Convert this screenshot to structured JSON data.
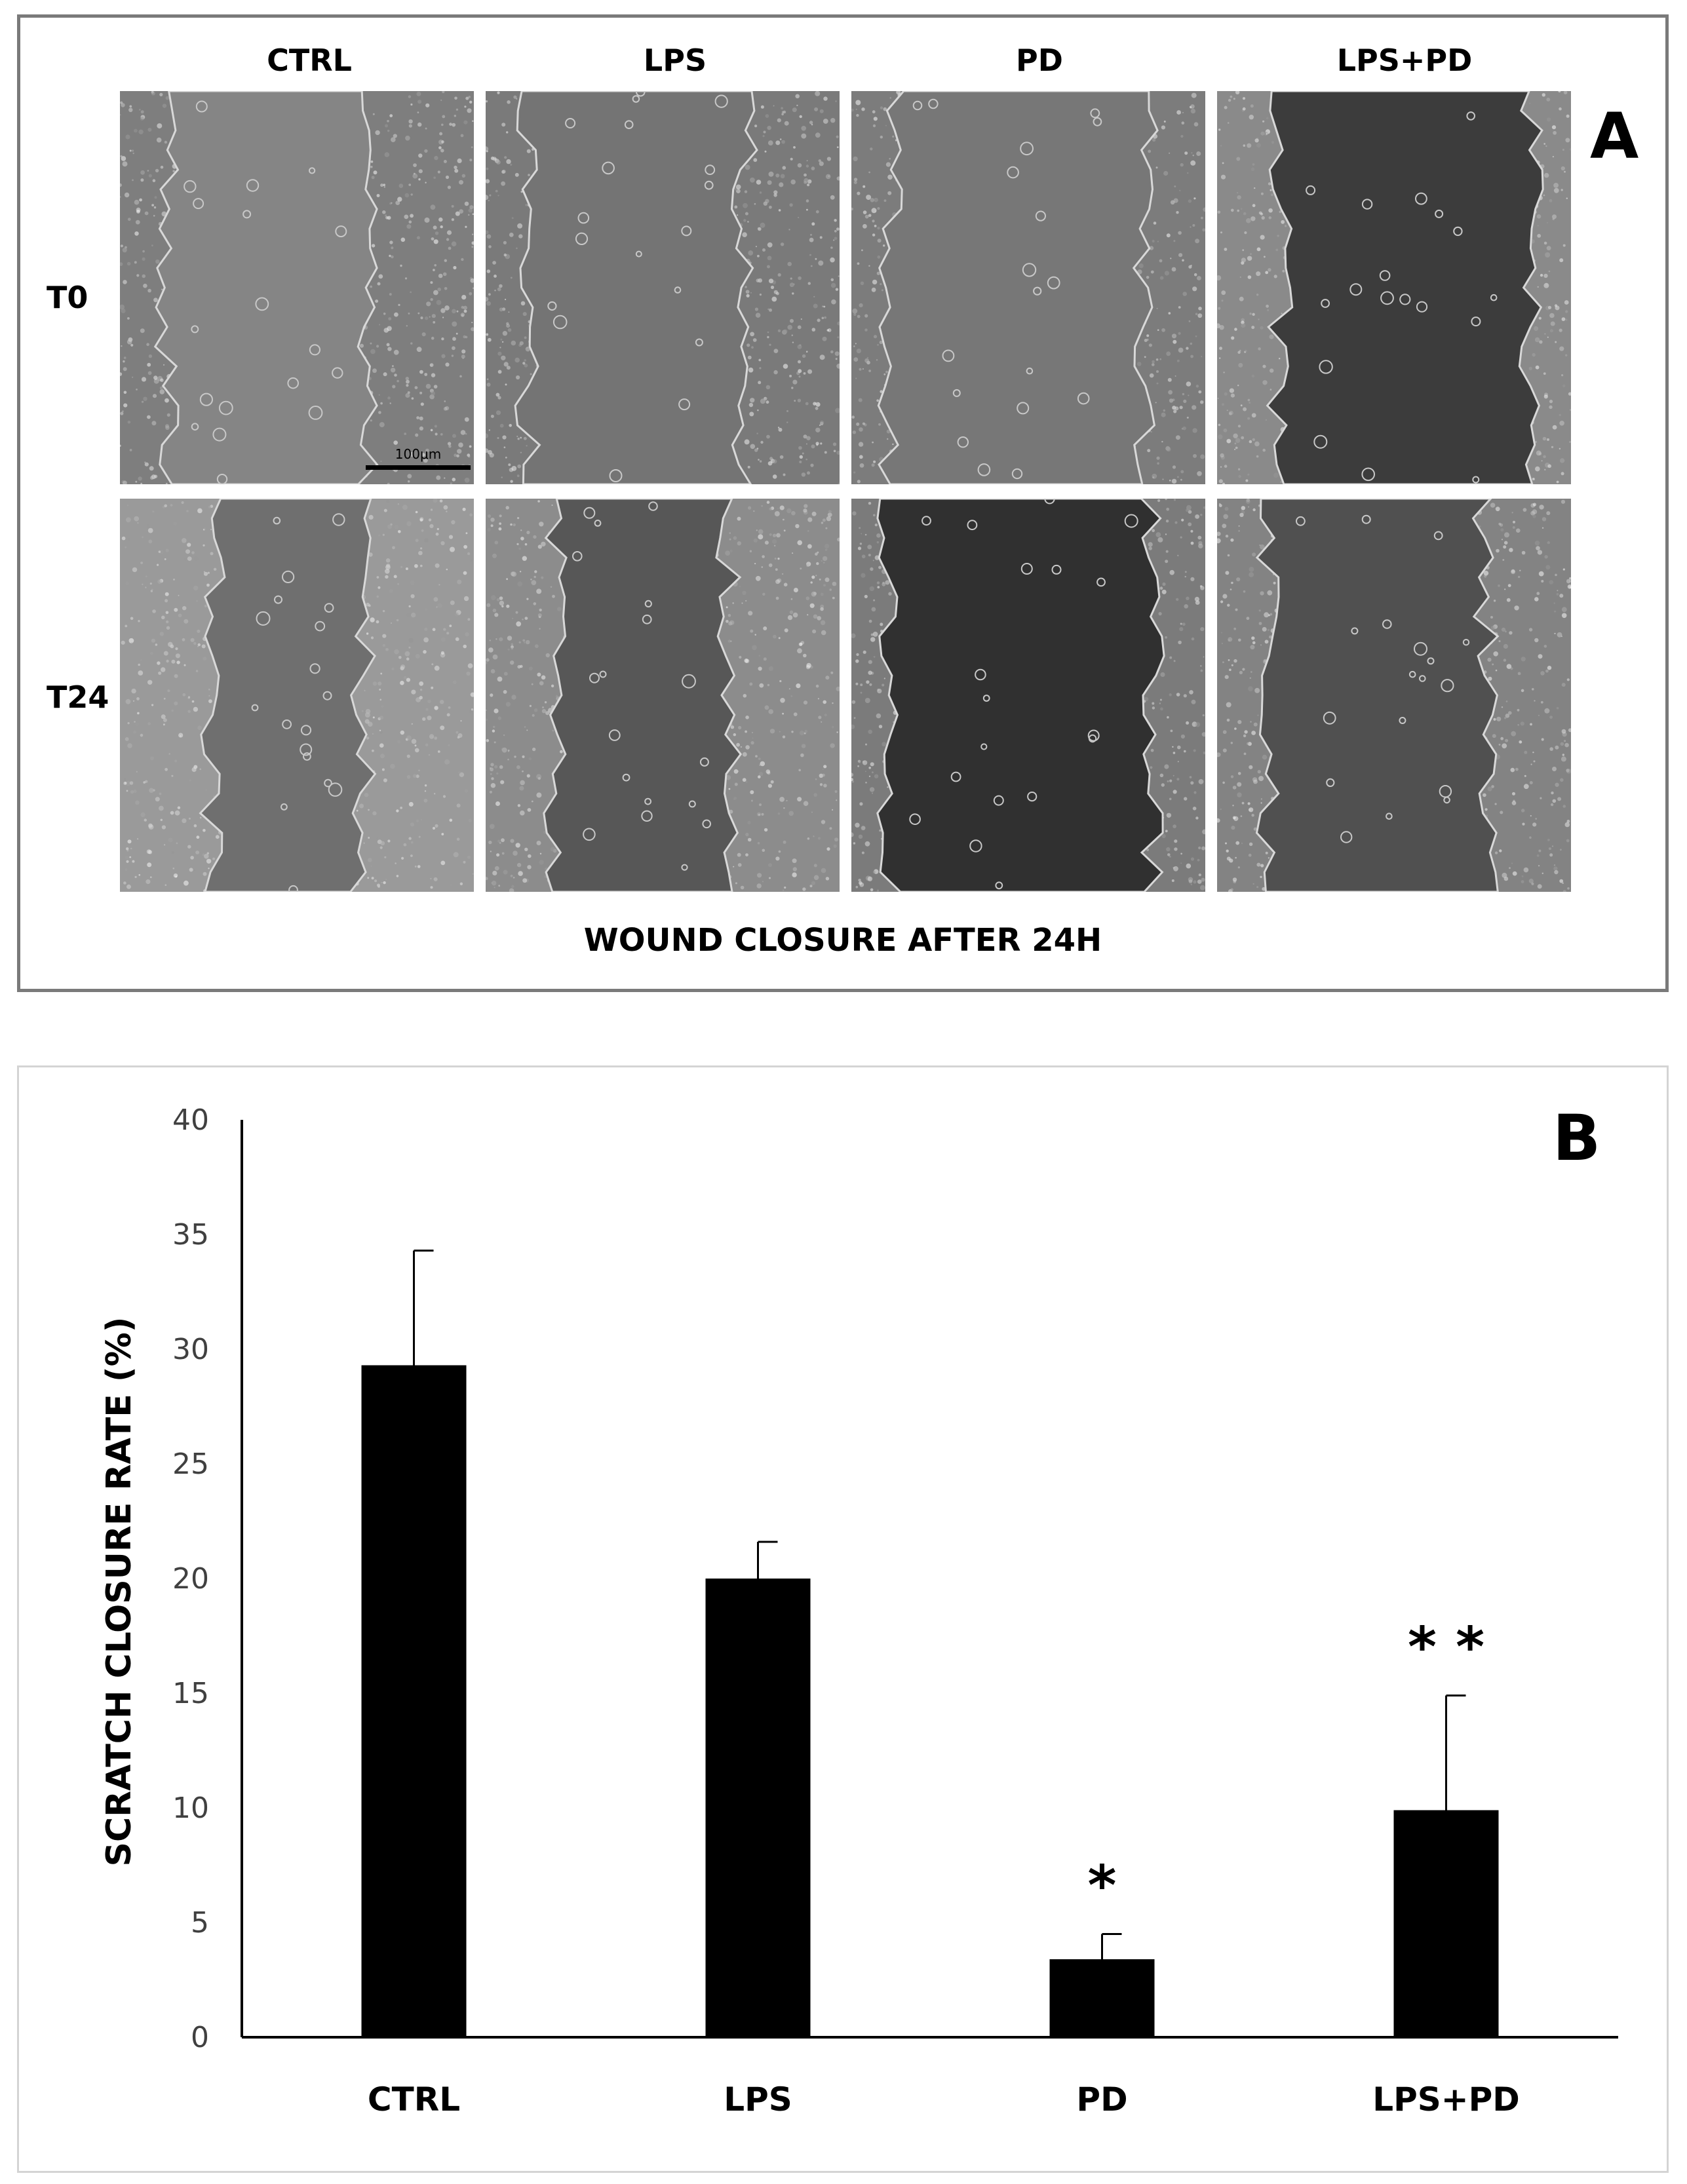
{
  "panel_a": {
    "letter": "A",
    "columns": [
      "CTRL",
      "LPS",
      "PD",
      "LPS+PD"
    ],
    "rows": [
      "T0",
      "T24"
    ],
    "scale_bar_label": "100μm",
    "caption": "WOUND CLOSURE AFTER 24H"
  },
  "panel_b": {
    "letter": "B"
  },
  "chart_data": {
    "type": "bar",
    "categories": [
      "CTRL",
      "LPS",
      "PD",
      "LPS+PD"
    ],
    "values": [
      29.3,
      20.0,
      3.4,
      9.9
    ],
    "errors": [
      5.0,
      1.6,
      1.1,
      5.0
    ],
    "significance": [
      "",
      "",
      "*",
      "* *"
    ],
    "xlabel": "",
    "ylabel": "SCRATCH CLOSURE RATE (%)",
    "ylim": [
      0,
      40
    ],
    "yticks": [
      0,
      5,
      10,
      15,
      20,
      25,
      30,
      35,
      40
    ],
    "grid": false,
    "legend": "none",
    "bar_color": "#000000"
  }
}
